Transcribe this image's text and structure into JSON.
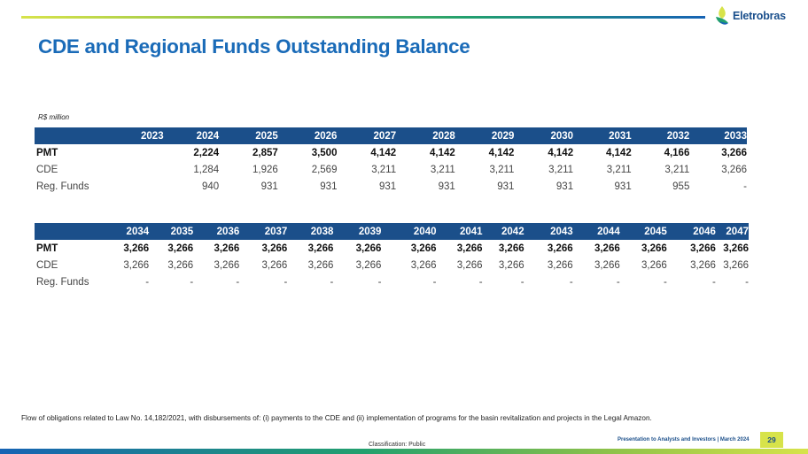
{
  "brand": {
    "name": "Eletrobras",
    "colors": {
      "primary": "#1b4f8a",
      "title": "#1a6bb8",
      "accent": "#d7e34a",
      "green": "#22a06e"
    }
  },
  "title": "CDE and Regional Funds Outstanding Balance",
  "unit_label": "R$ million",
  "table1": {
    "years": [
      "2023",
      "2024",
      "2025",
      "2026",
      "2027",
      "2028",
      "2029",
      "2030",
      "2031",
      "2032",
      "2033"
    ],
    "rows": [
      {
        "label": "PMT",
        "values": [
          "",
          "2,224",
          "2,857",
          "3,500",
          "4,142",
          "4,142",
          "4,142",
          "4,142",
          "4,142",
          "4,166",
          "3,266"
        ]
      },
      {
        "label": "CDE",
        "values": [
          "",
          "1,284",
          "1,926",
          "2,569",
          "3,211",
          "3,211",
          "3,211",
          "3,211",
          "3,211",
          "3,211",
          "3,266"
        ]
      },
      {
        "label": "Reg. Funds",
        "values": [
          "",
          "940",
          "931",
          "931",
          "931",
          "931",
          "931",
          "931",
          "931",
          "955",
          "-"
        ]
      }
    ]
  },
  "table2": {
    "years": [
      "2034",
      "2035",
      "2036",
      "2037",
      "2038",
      "2039",
      "2040",
      "2041",
      "2042",
      "2043",
      "2044",
      "2045",
      "2046",
      "2047"
    ],
    "rows": [
      {
        "label": "PMT",
        "values": [
          "3,266",
          "3,266",
          "3,266",
          "3,266",
          "3,266",
          "3,266",
          "3,266",
          "3,266",
          "3,266",
          "3,266",
          "3,266",
          "3,266",
          "3,266",
          "3,266"
        ]
      },
      {
        "label": "CDE",
        "values": [
          "3,266",
          "3,266",
          "3,266",
          "3,266",
          "3,266",
          "3,266",
          "3,266",
          "3,266",
          "3,266",
          "3,266",
          "3,266",
          "3,266",
          "3,266",
          "3,266"
        ]
      },
      {
        "label": "Reg. Funds",
        "values": [
          "-",
          "-",
          "-",
          "-",
          "-",
          "-",
          "-",
          "-",
          "-",
          "-",
          "-",
          "-",
          "-",
          "-"
        ]
      }
    ]
  },
  "footnote": "Flow of obligations related to Law No. 14,182/2021, with disbursements of: (i) payments to the CDE and (ii) implementation of programs for the basin revitalization and projects in the Legal Amazon.",
  "classification": "Classification: Public",
  "presentation": "Presentation to Analysts and Investors | March 2024",
  "page_number": "29"
}
